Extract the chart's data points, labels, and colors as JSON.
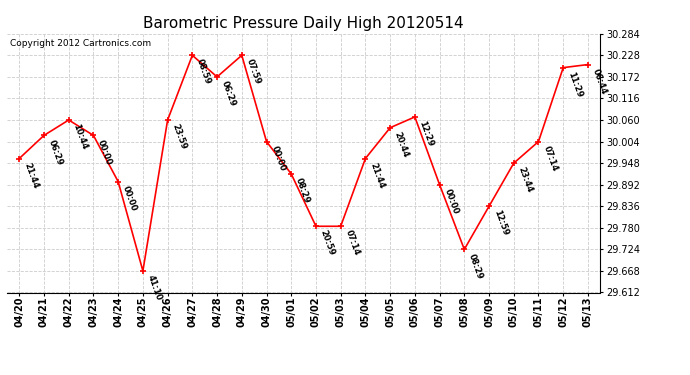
{
  "title": "Barometric Pressure Daily High 20120514",
  "copyright": "Copyright 2012 Cartronics.com",
  "dates": [
    "04/20",
    "04/21",
    "04/22",
    "04/23",
    "04/24",
    "04/25",
    "04/26",
    "04/27",
    "04/28",
    "04/29",
    "04/30",
    "05/01",
    "05/02",
    "05/03",
    "05/04",
    "05/05",
    "05/06",
    "05/07",
    "05/08",
    "05/09",
    "05/10",
    "05/11",
    "05/12",
    "05/13"
  ],
  "values": [
    29.96,
    30.02,
    30.06,
    30.02,
    29.9,
    29.668,
    30.06,
    30.228,
    30.172,
    30.228,
    30.004,
    29.92,
    29.784,
    29.784,
    29.96,
    30.04,
    30.068,
    29.892,
    29.724,
    29.836,
    29.948,
    30.004,
    30.196,
    30.204
  ],
  "time_labels": [
    "21:44",
    "06:29",
    "10:44",
    "00:00",
    "00:00",
    "41:10",
    "23:59",
    "08:59",
    "06:29",
    "07:59",
    "00:00",
    "08:29",
    "20:59",
    "07:14",
    "21:44",
    "20:44",
    "12:29",
    "00:00",
    "08:29",
    "12:59",
    "23:44",
    "07:14",
    "11:29",
    "06:44"
  ],
  "ylim": [
    29.612,
    30.284
  ],
  "yticks": [
    29.612,
    29.668,
    29.724,
    29.78,
    29.836,
    29.892,
    29.948,
    30.004,
    30.06,
    30.116,
    30.172,
    30.228,
    30.284
  ],
  "line_color": "red",
  "marker_color": "red",
  "grid_color": "#cccccc",
  "bg_color": "white",
  "title_fontsize": 11,
  "copyright_fontsize": 6.5,
  "label_fontsize": 6,
  "tick_fontsize": 7
}
